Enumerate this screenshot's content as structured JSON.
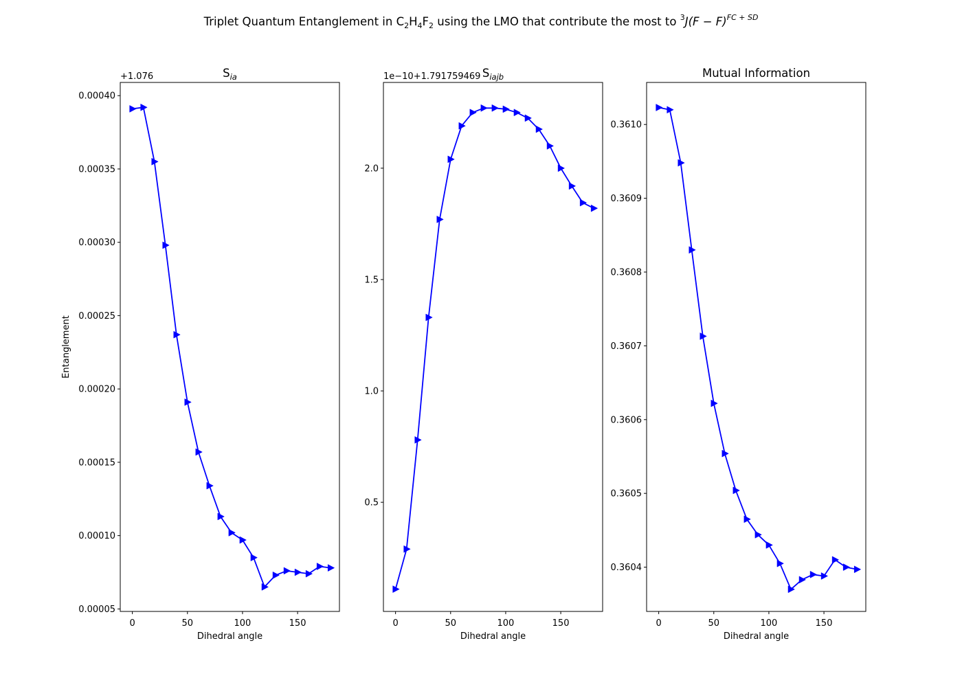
{
  "figure": {
    "suptitle": {
      "prefix": "Triplet Quantum Entanglement in C",
      "sub1": "2",
      "mid1": "H",
      "sub2": "4",
      "mid2": "F",
      "sub3": "2",
      "middle": " using the LMO that contribute the most to ",
      "sup_pre": "3",
      "main": "J(F − F)",
      "sup_post": "FC + SD"
    }
  },
  "chart_data": [
    {
      "type": "line",
      "title": "S",
      "title_sub": "ia",
      "xlabel": "Dihedral angle",
      "ylabel": "Entanglement",
      "offset_text": "+1.076",
      "xlim": [
        -11,
        188
      ],
      "ylim": [
        4.83e-05,
        0.000409
      ],
      "xticks": [
        0,
        50,
        100,
        150
      ],
      "xtick_labels": [
        "0",
        "50",
        "100",
        "150"
      ],
      "yticks": [
        5e-05,
        0.0001,
        0.00015,
        0.0002,
        0.00025,
        0.0003,
        0.00035,
        0.0004
      ],
      "ytick_labels": [
        "0.00005",
        "0.00010",
        "0.00015",
        "0.00020",
        "0.00025",
        "0.00030",
        "0.00035",
        "0.00040"
      ],
      "marker": "triangle-right",
      "color": "#0000ff",
      "x": [
        0,
        10,
        20,
        30,
        40,
        50,
        60,
        70,
        80,
        90,
        100,
        110,
        120,
        130,
        140,
        150,
        160,
        170,
        180
      ],
      "y": [
        0.000391,
        0.000392,
        0.000355,
        0.000298,
        0.000237,
        0.000191,
        0.000157,
        0.000134,
        0.000113,
        0.000102,
        9.7e-05,
        8.5e-05,
        6.5e-05,
        7.3e-05,
        7.6e-05,
        7.5e-05,
        7.4e-05,
        7.9e-05,
        7.8e-05
      ]
    },
    {
      "type": "line",
      "title": "S",
      "title_sub": "iajb",
      "xlabel": "Dihedral angle",
      "ylabel": "",
      "offset_text": "1e−10+1.791759469",
      "xlim": [
        -11,
        188
      ],
      "ylim": [
        0.01,
        2.385
      ],
      "xticks": [
        0,
        50,
        100,
        150
      ],
      "xtick_labels": [
        "0",
        "50",
        "100",
        "150"
      ],
      "yticks": [
        0.5,
        1.0,
        1.5,
        2.0
      ],
      "ytick_labels": [
        "0.5",
        "1.0",
        "1.5",
        "2.0"
      ],
      "marker": "triangle-right",
      "color": "#0000ff",
      "x": [
        0,
        10,
        20,
        30,
        40,
        50,
        60,
        70,
        80,
        90,
        100,
        110,
        120,
        130,
        140,
        150,
        160,
        170,
        180
      ],
      "y": [
        0.11,
        0.29,
        0.78,
        1.33,
        1.77,
        2.04,
        2.19,
        2.25,
        2.27,
        2.27,
        2.265,
        2.25,
        2.225,
        2.175,
        2.1,
        2.0,
        1.92,
        1.845,
        1.82
      ]
    },
    {
      "type": "line",
      "title": "Mutual Information",
      "title_sub": "",
      "xlabel": "Dihedral angle",
      "ylabel": "",
      "offset_text": "",
      "xlim": [
        -11,
        188
      ],
      "ylim": [
        0.36034,
        0.361057
      ],
      "xticks": [
        0,
        50,
        100,
        150
      ],
      "xtick_labels": [
        "0",
        "50",
        "100",
        "150"
      ],
      "yticks": [
        0.3604,
        0.3605,
        0.3606,
        0.3607,
        0.3608,
        0.3609,
        0.361
      ],
      "ytick_labels": [
        "0.3604",
        "0.3605",
        "0.3606",
        "0.3607",
        "0.3608",
        "0.3609",
        "0.3610"
      ],
      "marker": "triangle-right",
      "color": "#0000ff",
      "x": [
        0,
        10,
        20,
        30,
        40,
        50,
        60,
        70,
        80,
        90,
        100,
        110,
        120,
        130,
        140,
        150,
        160,
        170,
        180
      ],
      "y": [
        0.361023,
        0.36102,
        0.360948,
        0.36083,
        0.360713,
        0.360622,
        0.360554,
        0.360504,
        0.360465,
        0.360444,
        0.36043,
        0.360405,
        0.36037,
        0.360383,
        0.36039,
        0.360388,
        0.36041,
        0.3604,
        0.360397
      ]
    }
  ]
}
